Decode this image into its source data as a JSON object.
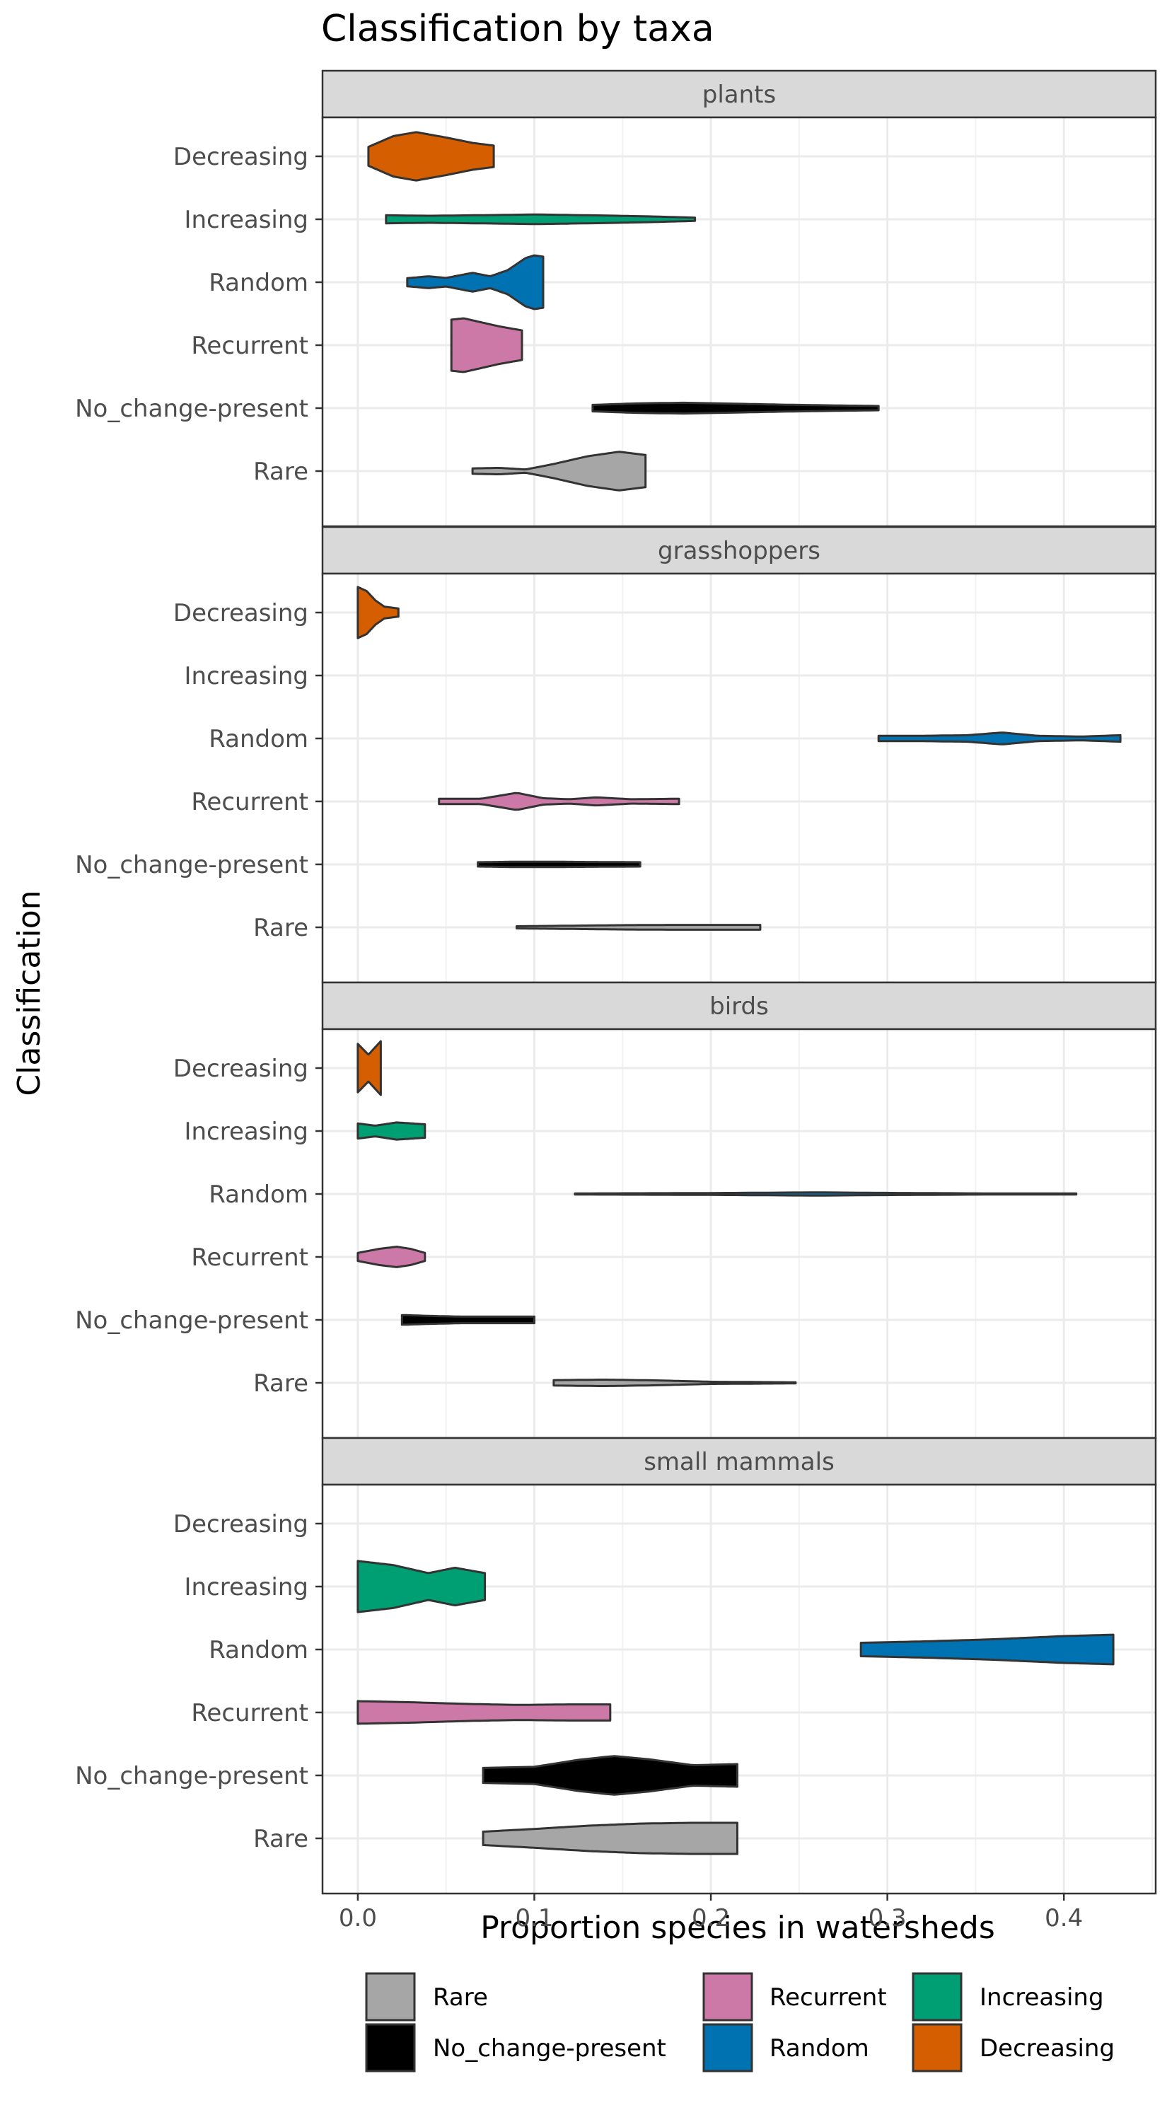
{
  "chart_data": {
    "type": "violin",
    "title": "Classification by taxa",
    "xlabel": "Proportion species in watersheds",
    "ylabel": "Classification",
    "xlim": [
      -0.02,
      0.452
    ],
    "xticks": [
      0.0,
      0.1,
      0.2,
      0.3,
      0.4
    ],
    "xtick_labels": [
      "0.0",
      "0.1",
      "0.2",
      "0.3",
      "0.4"
    ],
    "categories": [
      "Decreasing",
      "Increasing",
      "Random",
      "Recurrent",
      "No_change-present",
      "Rare"
    ],
    "colors": {
      "Rare": "#a6a6a6",
      "No_change-present": "#000000",
      "Recurrent": "#cc79a7",
      "Random": "#0072b2",
      "Increasing": "#009e73",
      "Decreasing": "#d55e00"
    },
    "grid": true,
    "legend": {
      "position": "bottom",
      "entries": [
        "Rare",
        "No_change-present",
        "Recurrent",
        "Random",
        "Increasing",
        "Decreasing"
      ]
    },
    "panels": [
      {
        "name": "plants",
        "violins": [
          {
            "category": "Decreasing",
            "min": 0.006,
            "max": 0.077,
            "profile": [
              [
                0.006,
                0.35
              ],
              [
                0.02,
                0.75
              ],
              [
                0.033,
                0.9
              ],
              [
                0.05,
                0.7
              ],
              [
                0.065,
                0.5
              ],
              [
                0.077,
                0.4
              ]
            ]
          },
          {
            "category": "Increasing",
            "min": 0.016,
            "max": 0.191,
            "profile": [
              [
                0.016,
                0.15
              ],
              [
                0.04,
                0.13
              ],
              [
                0.08,
                0.16
              ],
              [
                0.1,
                0.18
              ],
              [
                0.14,
                0.14
              ],
              [
                0.17,
                0.1
              ],
              [
                0.191,
                0.06
              ]
            ]
          },
          {
            "category": "Random",
            "min": 0.028,
            "max": 0.105,
            "profile": [
              [
                0.028,
                0.15
              ],
              [
                0.04,
                0.22
              ],
              [
                0.05,
                0.16
              ],
              [
                0.065,
                0.35
              ],
              [
                0.075,
                0.22
              ],
              [
                0.085,
                0.45
              ],
              [
                0.095,
                0.9
              ],
              [
                0.1,
                1.0
              ],
              [
                0.105,
                0.95
              ]
            ]
          },
          {
            "category": "Recurrent",
            "min": 0.053,
            "max": 0.093,
            "profile": [
              [
                0.053,
                0.95
              ],
              [
                0.06,
                1.0
              ],
              [
                0.07,
                0.85
              ],
              [
                0.08,
                0.7
              ],
              [
                0.093,
                0.55
              ]
            ]
          },
          {
            "category": "No_change-present",
            "min": 0.133,
            "max": 0.295,
            "profile": [
              [
                0.133,
                0.12
              ],
              [
                0.16,
                0.18
              ],
              [
                0.185,
                0.2
              ],
              [
                0.21,
                0.17
              ],
              [
                0.24,
                0.13
              ],
              [
                0.27,
                0.1
              ],
              [
                0.295,
                0.08
              ]
            ]
          },
          {
            "category": "Rare",
            "min": 0.065,
            "max": 0.163,
            "profile": [
              [
                0.065,
                0.1
              ],
              [
                0.08,
                0.12
              ],
              [
                0.095,
                0.06
              ],
              [
                0.11,
                0.25
              ],
              [
                0.13,
                0.55
              ],
              [
                0.148,
                0.72
              ],
              [
                0.163,
                0.6
              ]
            ]
          }
        ]
      },
      {
        "name": "grasshoppers",
        "violins": [
          {
            "category": "Decreasing",
            "min": 0.0,
            "max": 0.023,
            "profile": [
              [
                0.0,
                0.95
              ],
              [
                0.005,
                0.8
              ],
              [
                0.01,
                0.45
              ],
              [
                0.015,
                0.22
              ],
              [
                0.023,
                0.15
              ]
            ]
          },
          {
            "category": "Random",
            "min": 0.295,
            "max": 0.432,
            "profile": [
              [
                0.295,
                0.1
              ],
              [
                0.32,
                0.1
              ],
              [
                0.345,
                0.12
              ],
              [
                0.365,
                0.22
              ],
              [
                0.385,
                0.1
              ],
              [
                0.41,
                0.07
              ],
              [
                0.432,
                0.12
              ]
            ]
          },
          {
            "category": "Recurrent",
            "min": 0.046,
            "max": 0.182,
            "profile": [
              [
                0.046,
                0.1
              ],
              [
                0.07,
                0.1
              ],
              [
                0.09,
                0.32
              ],
              [
                0.105,
                0.12
              ],
              [
                0.12,
                0.08
              ],
              [
                0.135,
                0.15
              ],
              [
                0.155,
                0.08
              ],
              [
                0.182,
                0.1
              ]
            ]
          },
          {
            "category": "No_change-present",
            "min": 0.068,
            "max": 0.16,
            "profile": [
              [
                0.068,
                0.08
              ],
              [
                0.09,
                0.1
              ],
              [
                0.11,
                0.1
              ],
              [
                0.13,
                0.09
              ],
              [
                0.16,
                0.08
              ]
            ]
          },
          {
            "category": "Rare",
            "min": 0.09,
            "max": 0.228,
            "profile": [
              [
                0.09,
                0.04
              ],
              [
                0.12,
                0.06
              ],
              [
                0.15,
                0.08
              ],
              [
                0.18,
                0.09
              ],
              [
                0.2,
                0.09
              ],
              [
                0.228,
                0.09
              ]
            ]
          }
        ]
      },
      {
        "name": "birds",
        "violins": [
          {
            "category": "Decreasing",
            "min": 0.0,
            "max": 0.013,
            "profile": [
              [
                0.0,
                0.9
              ],
              [
                0.006,
                0.5
              ],
              [
                0.013,
                1.0
              ]
            ]
          },
          {
            "category": "Increasing",
            "min": 0.0,
            "max": 0.038,
            "profile": [
              [
                0.0,
                0.28
              ],
              [
                0.01,
                0.2
              ],
              [
                0.022,
                0.32
              ],
              [
                0.038,
                0.25
              ]
            ]
          },
          {
            "category": "Random",
            "min": 0.123,
            "max": 0.407,
            "profile": [
              [
                0.123,
                0.02
              ],
              [
                0.2,
                0.035
              ],
              [
                0.26,
                0.06
              ],
              [
                0.3,
                0.04
              ],
              [
                0.36,
                0.02
              ],
              [
                0.407,
                0.02
              ]
            ]
          },
          {
            "category": "Recurrent",
            "min": 0.0,
            "max": 0.038,
            "profile": [
              [
                0.0,
                0.15
              ],
              [
                0.012,
                0.3
              ],
              [
                0.022,
                0.38
              ],
              [
                0.03,
                0.3
              ],
              [
                0.038,
                0.15
              ]
            ]
          },
          {
            "category": "No_change-present",
            "min": 0.025,
            "max": 0.1,
            "profile": [
              [
                0.025,
                0.18
              ],
              [
                0.04,
                0.15
              ],
              [
                0.06,
                0.12
              ],
              [
                0.08,
                0.12
              ],
              [
                0.1,
                0.12
              ]
            ]
          },
          {
            "category": "Rare",
            "min": 0.111,
            "max": 0.248,
            "profile": [
              [
                0.111,
                0.1
              ],
              [
                0.14,
                0.12
              ],
              [
                0.17,
                0.09
              ],
              [
                0.2,
                0.04
              ],
              [
                0.248,
                0.02
              ]
            ]
          }
        ]
      },
      {
        "name": "small mammals",
        "violins": [
          {
            "category": "Increasing",
            "min": 0.0,
            "max": 0.072,
            "profile": [
              [
                0.0,
                0.95
              ],
              [
                0.02,
                0.8
              ],
              [
                0.04,
                0.5
              ],
              [
                0.055,
                0.7
              ],
              [
                0.072,
                0.5
              ]
            ]
          },
          {
            "category": "Random",
            "min": 0.285,
            "max": 0.428,
            "profile": [
              [
                0.285,
                0.25
              ],
              [
                0.32,
                0.3
              ],
              [
                0.36,
                0.38
              ],
              [
                0.4,
                0.5
              ],
              [
                0.428,
                0.55
              ]
            ]
          },
          {
            "category": "Recurrent",
            "min": 0.0,
            "max": 0.143,
            "profile": [
              [
                0.0,
                0.42
              ],
              [
                0.03,
                0.38
              ],
              [
                0.06,
                0.32
              ],
              [
                0.09,
                0.28
              ],
              [
                0.12,
                0.3
              ],
              [
                0.143,
                0.3
              ]
            ]
          },
          {
            "category": "No_change-present",
            "min": 0.071,
            "max": 0.215,
            "profile": [
              [
                0.071,
                0.28
              ],
              [
                0.1,
                0.32
              ],
              [
                0.125,
                0.58
              ],
              [
                0.145,
                0.72
              ],
              [
                0.165,
                0.6
              ],
              [
                0.19,
                0.38
              ],
              [
                0.215,
                0.42
              ]
            ]
          },
          {
            "category": "Rare",
            "min": 0.071,
            "max": 0.215,
            "profile": [
              [
                0.071,
                0.25
              ],
              [
                0.1,
                0.35
              ],
              [
                0.13,
                0.47
              ],
              [
                0.16,
                0.55
              ],
              [
                0.19,
                0.58
              ],
              [
                0.215,
                0.58
              ]
            ]
          }
        ]
      }
    ]
  }
}
